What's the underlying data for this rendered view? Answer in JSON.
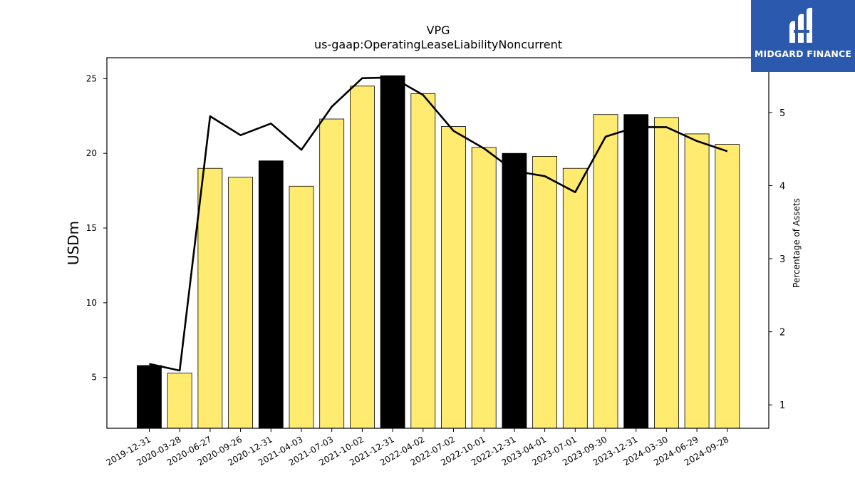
{
  "chart_data": {
    "type": "bar",
    "title": "VPG",
    "subtitle": "us-gaap:OperatingLeaseLiabilityNoncurrent",
    "ylabel": "USDm",
    "y2label": "Percentage of Assets",
    "ylim": [
      1.6,
      26.4
    ],
    "y2lim": [
      0.68,
      5.75
    ],
    "yticks": [
      5,
      10,
      15,
      20,
      25
    ],
    "y2ticks": [
      1,
      2,
      3,
      4,
      5
    ],
    "grid": false,
    "legend": "none",
    "categories": [
      "2019-12-31",
      "2020-03-28",
      "2020-06-27",
      "2020-09-26",
      "2020-12-31",
      "2021-04-03",
      "2021-07-03",
      "2021-10-02",
      "2021-12-31",
      "2022-04-02",
      "2022-07-02",
      "2022-10-01",
      "2022-12-31",
      "2023-04-01",
      "2023-07-01",
      "2023-09-30",
      "2023-12-31",
      "2024-03-30",
      "2024-06-29",
      "2024-09-28"
    ],
    "series": [
      {
        "type": "bar",
        "axis": "left",
        "values": [
          5.8,
          5.3,
          19.0,
          18.4,
          19.5,
          17.8,
          22.3,
          24.5,
          25.2,
          24.0,
          21.8,
          20.4,
          20.0,
          19.8,
          19.0,
          22.6,
          22.6,
          22.4,
          21.3,
          20.6
        ],
        "highlight_year_end": true
      },
      {
        "type": "line",
        "axis": "right",
        "values": [
          1.56,
          1.47,
          4.95,
          4.69,
          4.85,
          4.49,
          5.08,
          5.47,
          5.48,
          5.24,
          4.75,
          4.51,
          4.2,
          4.13,
          3.91,
          4.67,
          4.8,
          4.8,
          4.61,
          4.47
        ]
      }
    ],
    "colors": {
      "bar_fill": "#ffeb70",
      "bar_highlight": "#000000",
      "bar_edge": "#000000",
      "line": "#000000"
    }
  },
  "logo": {
    "text": "MIDGARD FINANCE",
    "color": "#2b59ad"
  }
}
